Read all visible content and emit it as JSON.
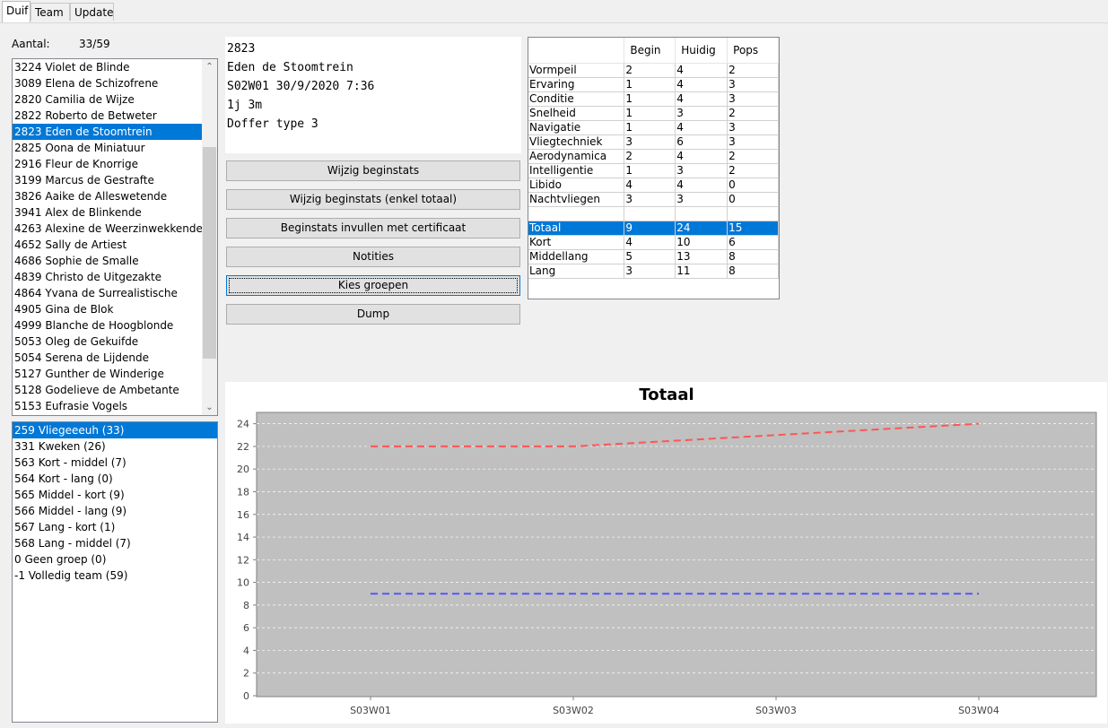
{
  "tabs": [
    "Duif",
    "Team",
    "Update"
  ],
  "count": {
    "label": "Aantal:",
    "value": "33/59"
  },
  "pigeons": [
    "3224 Violet de Blinde",
    "3089 Elena de Schizofrene",
    "2820 Camilia de Wijze",
    "2822 Roberto de Betweter",
    "2823 Eden de Stoomtrein",
    "2825 Oona de Miniatuur",
    "2916 Fleur de Knorrige",
    "3199 Marcus de Gestrafte",
    "3826 Aaike de Alleswetende",
    "3941 Alex de Blinkende",
    "4263 Alexine de Weerzinwekkende",
    "4652 Sally de Artiest",
    "4686 Sophie de Smalle",
    "4839 Christo de Uitgezakte",
    "4864 Yvana de Surrealistische",
    "4905 Gina de Blok",
    "4999 Blanche de Hoogblonde",
    "5053 Oleg de Gekuifde",
    "5054 Serena de Lijdende",
    "5127 Gunther de Winderige",
    "5128 Godelieve de Ambetante",
    "5153 Eufrasie Vogels"
  ],
  "selected_pigeon": 4,
  "groups": [
    "259 Vliegeeeuh (33)",
    "331 Kweken (26)",
    "563 Kort - middel (7)",
    "564 Kort - lang (0)",
    "565 Middel - kort (9)",
    "566 Middel - lang (9)",
    "567 Lang - kort (1)",
    "568 Lang - middel (7)",
    "0 Geen groep (0)",
    "-1 Volledig team (59)"
  ],
  "selected_group": 0,
  "info": {
    "id": "2823",
    "name": "Eden de Stoomtrein",
    "date": "S02W01 30/9/2020 7:36",
    "age": "1j 3m",
    "type": "Doffer type 3"
  },
  "buttons": {
    "wijzig": "Wijzig beginstats",
    "wijzig_totaal": "Wijzig beginstats (enkel totaal)",
    "certificaat": "Beginstats invullen met certificaat",
    "notities": "Notities",
    "groepen": "Kies groepen",
    "dump": "Dump"
  },
  "stats": {
    "headers": [
      "",
      "Begin",
      "Huidig",
      "Pops"
    ],
    "rows": [
      [
        "Vormpeil",
        "2",
        "4",
        "2"
      ],
      [
        "Ervaring",
        "1",
        "4",
        "3"
      ],
      [
        "Conditie",
        "1",
        "4",
        "3"
      ],
      [
        "Snelheid",
        "1",
        "3",
        "2"
      ],
      [
        "Navigatie",
        "1",
        "4",
        "3"
      ],
      [
        "Vliegtechniek",
        "3",
        "6",
        "3"
      ],
      [
        "Aerodynamica",
        "2",
        "4",
        "2"
      ],
      [
        "Intelligentie",
        "1",
        "3",
        "2"
      ],
      [
        "Libido",
        "4",
        "4",
        "0"
      ],
      [
        "Nachtvliegen",
        "3",
        "3",
        "0"
      ],
      [
        "",
        "",
        "",
        ""
      ],
      [
        "Totaal",
        "9",
        "24",
        "15"
      ],
      [
        "Kort",
        "4",
        "10",
        "6"
      ],
      [
        "Middellang",
        "5",
        "13",
        "8"
      ],
      [
        "Lang",
        "3",
        "11",
        "8"
      ]
    ],
    "selected_row": 11
  },
  "colors": {
    "selection": "#0078d7",
    "plot_bg": "#c0c0c0",
    "series_huidig": "#ff5555",
    "series_begin": "#5555ff"
  },
  "chart_data": {
    "type": "line",
    "title": "Totaal",
    "categories": [
      "S03W01",
      "S03W02",
      "S03W03",
      "S03W04"
    ],
    "series": [
      {
        "values": [
          22,
          22,
          23,
          24
        ],
        "color": "#ff5555",
        "dash": "dashed"
      },
      {
        "values": [
          9,
          9,
          9,
          9
        ],
        "color": "#5555ff",
        "dash": "dashed"
      }
    ],
    "ylim": [
      0,
      25
    ],
    "yticks": [
      0,
      2,
      4,
      6,
      8,
      10,
      12,
      14,
      16,
      18,
      20,
      22,
      24
    ],
    "grid": true
  }
}
